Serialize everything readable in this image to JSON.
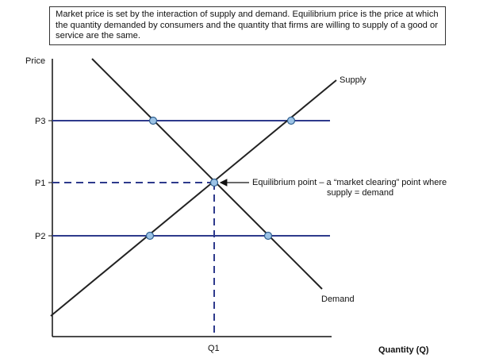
{
  "note": "Market price is set by the interaction of supply and demand. Equilibrium price is the price at which the quantity demanded by consumers and the quantity that firms are willing to supply of a good or service are the same.",
  "axes": {
    "y_label": "Price",
    "x_label": "Quantity (Q)"
  },
  "price_levels": [
    "P3",
    "P1",
    "P2"
  ],
  "quantity_levels": [
    "Q1"
  ],
  "curves": {
    "supply_label": "Supply",
    "demand_label": "Demand"
  },
  "annotation": {
    "line1": "Equilibrium point – a “market clearing” point where",
    "line2": "supply = demand"
  },
  "colors": {
    "curve": "#222222",
    "price_line": "#2e3a8c",
    "guide_dash": "#2e3a8c",
    "marker_fill": "#9cc3e6",
    "marker_stroke": "#2e5f8f"
  }
}
